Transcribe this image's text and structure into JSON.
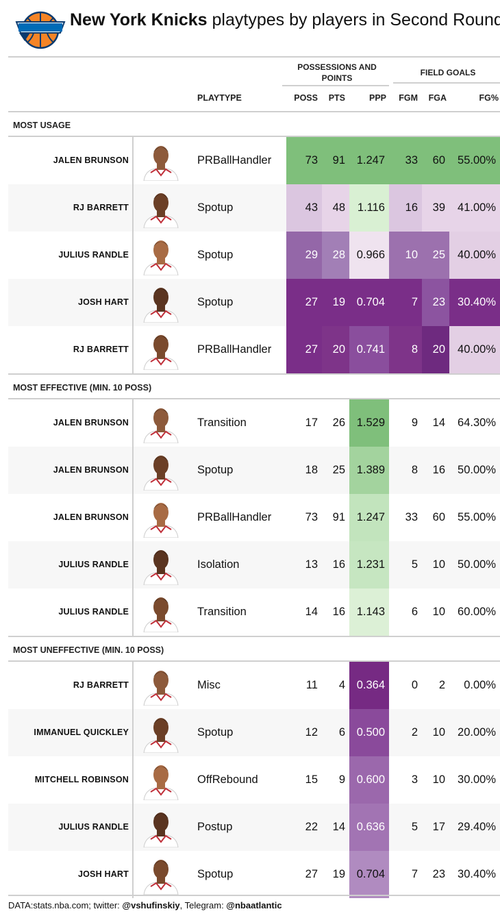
{
  "title": {
    "team": "New York Knicks",
    "rest": "playtypes by players in Second Round"
  },
  "column_groups": {
    "poss_points": "POSSESSIONS AND POINTS",
    "field_goals": "FIELD GOALS"
  },
  "columns": {
    "playtype": "PLAYTYPE",
    "poss": "POSS",
    "pts": "PTS",
    "ppp": "PPP",
    "fgm": "FGM",
    "fga": "FGA",
    "fgpct": "FG%"
  },
  "colors": {
    "knicks_orange": "#f58426",
    "knicks_blue": "#006bb6",
    "green_scale_max": "#7fbf7b",
    "purple_scale_max": "#762a83",
    "neutral": "#f7f7f7"
  },
  "footer": {
    "prefix": "DATA:stats.nba.com; twitter: ",
    "twitter": "@vshufinskiy",
    "mid": ", Telegram: ",
    "telegram": "@nbaatlantic"
  },
  "chart_data": {
    "type": "table",
    "sections": [
      {
        "label": "MOST USAGE",
        "rows": [
          {
            "player": "JALEN BRUNSON",
            "playtype": "PRBallHandler",
            "poss": "73",
            "pts": "91",
            "ppp": "1.247",
            "fgm": "33",
            "fga": "60",
            "fgpct": "55.00%",
            "colors": {
              "poss": "#7fbf7b",
              "pts": "#7fbf7b",
              "ppp": "#7fbf7b",
              "fgm": "#7fbf7b",
              "fga": "#7fbf7b",
              "fgpct": "#7fbf7b"
            }
          },
          {
            "player": "RJ BARRETT",
            "playtype": "Spotup",
            "poss": "43",
            "pts": "48",
            "ppp": "1.116",
            "fgm": "16",
            "fga": "39",
            "fgpct": "41.00%",
            "colors": {
              "poss": "#dbc6e0",
              "pts": "#e7d4e8",
              "ppp": "#d9f0d3",
              "fgm": "#dbc6e0",
              "fga": "#e7d4e8",
              "fgpct": "#e7d4e8"
            }
          },
          {
            "player": "JULIUS RANDLE",
            "playtype": "Spotup",
            "poss": "29",
            "pts": "28",
            "ppp": "0.966",
            "fgm": "10",
            "fga": "25",
            "fgpct": "40.00%",
            "colors": {
              "poss": "#9467a8",
              "pts": "#a27fb6",
              "ppp": "#efe3ef",
              "fgm": "#9c71ae",
              "fga": "#9c71ae",
              "fgpct": "#e3cfe4"
            }
          },
          {
            "player": "JOSH HART",
            "playtype": "Spotup",
            "poss": "27",
            "pts": "19",
            "ppp": "0.704",
            "fgm": "7",
            "fga": "23",
            "fgpct": "30.40%",
            "colors": {
              "poss": "#7a2e88",
              "pts": "#7a2e88",
              "ppp": "#7a2e88",
              "fgm": "#7a2e88",
              "fga": "#8c54a0",
              "fgpct": "#7a2e88"
            }
          },
          {
            "player": "RJ BARRETT",
            "playtype": "PRBallHandler",
            "poss": "27",
            "pts": "20",
            "ppp": "0.741",
            "fgm": "8",
            "fga": "20",
            "fgpct": "40.00%",
            "colors": {
              "poss": "#7a2e88",
              "pts": "#7e3489",
              "ppp": "#8a4e9d",
              "fgm": "#7e3489",
              "fga": "#6e2a7f",
              "fgpct": "#e3cfe4"
            }
          }
        ]
      },
      {
        "label": "MOST EFFECTIVE (MIN. 10 POSS)",
        "rows": [
          {
            "player": "JALEN BRUNSON",
            "playtype": "Transition",
            "poss": "17",
            "pts": "26",
            "ppp": "1.529",
            "fgm": "9",
            "fga": "14",
            "fgpct": "64.30%",
            "colors": {
              "ppp": "#7fbf7b"
            }
          },
          {
            "player": "JALEN BRUNSON",
            "playtype": "Spotup",
            "poss": "18",
            "pts": "25",
            "ppp": "1.389",
            "fgm": "8",
            "fga": "16",
            "fgpct": "50.00%",
            "colors": {
              "ppp": "#a3d39e"
            }
          },
          {
            "player": "JALEN BRUNSON",
            "playtype": "PRBallHandler",
            "poss": "73",
            "pts": "91",
            "ppp": "1.247",
            "fgm": "33",
            "fga": "60",
            "fgpct": "55.00%",
            "colors": {
              "ppp": "#c2e4bd"
            }
          },
          {
            "player": "JULIUS RANDLE",
            "playtype": "Isolation",
            "poss": "13",
            "pts": "16",
            "ppp": "1.231",
            "fgm": "5",
            "fga": "10",
            "fgpct": "50.00%",
            "colors": {
              "ppp": "#c6e6c1"
            }
          },
          {
            "player": "JULIUS RANDLE",
            "playtype": "Transition",
            "poss": "14",
            "pts": "16",
            "ppp": "1.143",
            "fgm": "6",
            "fga": "10",
            "fgpct": "60.00%",
            "colors": {
              "ppp": "#dcf0d6"
            }
          }
        ]
      },
      {
        "label": "MOST UNEFFECTIVE (MIN. 10 POSS)",
        "rows": [
          {
            "player": "RJ BARRETT",
            "playtype": "Misc",
            "poss": "11",
            "pts": "4",
            "ppp": "0.364",
            "fgm": "0",
            "fga": "2",
            "fgpct": "0.00%",
            "colors": {
              "ppp": "#762a83"
            }
          },
          {
            "player": "IMMANUEL QUICKLEY",
            "playtype": "Spotup",
            "poss": "12",
            "pts": "6",
            "ppp": "0.500",
            "fgm": "2",
            "fga": "10",
            "fgpct": "20.00%",
            "colors": {
              "ppp": "#8a4a9b"
            }
          },
          {
            "player": "MITCHELL ROBINSON",
            "playtype": "OffRebound",
            "poss": "15",
            "pts": "9",
            "ppp": "0.600",
            "fgm": "3",
            "fga": "10",
            "fgpct": "30.00%",
            "colors": {
              "ppp": "#9b68ac"
            }
          },
          {
            "player": "JULIUS RANDLE",
            "playtype": "Postup",
            "poss": "22",
            "pts": "14",
            "ppp": "0.636",
            "fgm": "5",
            "fga": "17",
            "fgpct": "29.40%",
            "colors": {
              "ppp": "#a274b3"
            }
          },
          {
            "player": "JOSH HART",
            "playtype": "Spotup",
            "poss": "27",
            "pts": "19",
            "ppp": "0.704",
            "fgm": "7",
            "fga": "23",
            "fgpct": "30.40%",
            "colors": {
              "ppp": "#b08bc0"
            }
          }
        ]
      }
    ]
  }
}
